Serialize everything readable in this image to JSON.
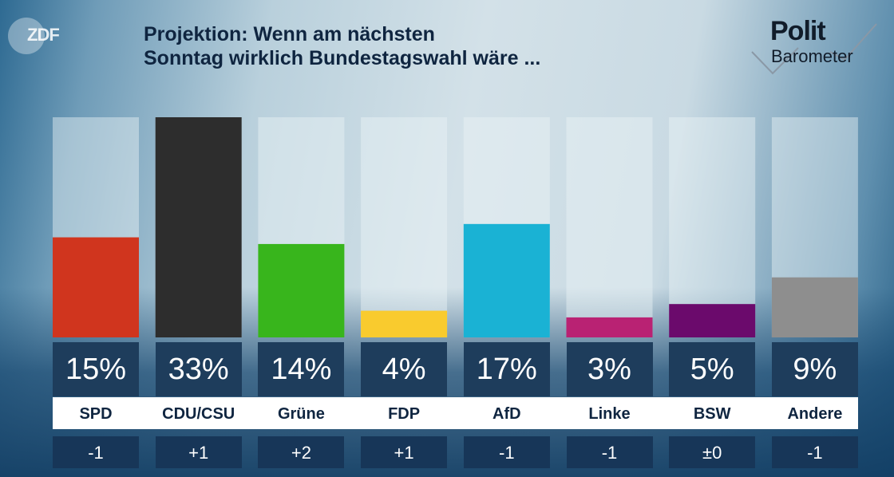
{
  "header": {
    "broadcaster_logo": "ZDF",
    "title_line1": "Projektion: Wenn am nächsten",
    "title_line2": "Sonntag wirklich Bundestagswahl wäre ...",
    "brand_line1": "Polit",
    "brand_line2": "Barometer"
  },
  "chart_data": {
    "type": "bar",
    "title": "Projektion: Wenn am nächsten Sonntag wirklich Bundestagswahl wäre ...",
    "xlabel": "",
    "ylabel": "",
    "unit": "%",
    "ylim": [
      0,
      33
    ],
    "categories": [
      "SPD",
      "CDU/CSU",
      "Grüne",
      "FDP",
      "AfD",
      "Linke",
      "BSW",
      "Andere"
    ],
    "values": [
      15,
      33,
      14,
      4,
      17,
      3,
      5,
      9
    ],
    "value_labels": [
      "15%",
      "33%",
      "14%",
      "4%",
      "17%",
      "3%",
      "5%",
      "9%"
    ],
    "changes": [
      "-1",
      "+1",
      "+2",
      "+1",
      "-1",
      "-1",
      "±0",
      "-1"
    ],
    "colors": [
      "#d0351e",
      "#2d2d2d",
      "#38b51c",
      "#f9cb2e",
      "#1ab2d4",
      "#b92273",
      "#6b0a6c",
      "#8e8e8e"
    ],
    "legend": "none",
    "grid": false
  }
}
